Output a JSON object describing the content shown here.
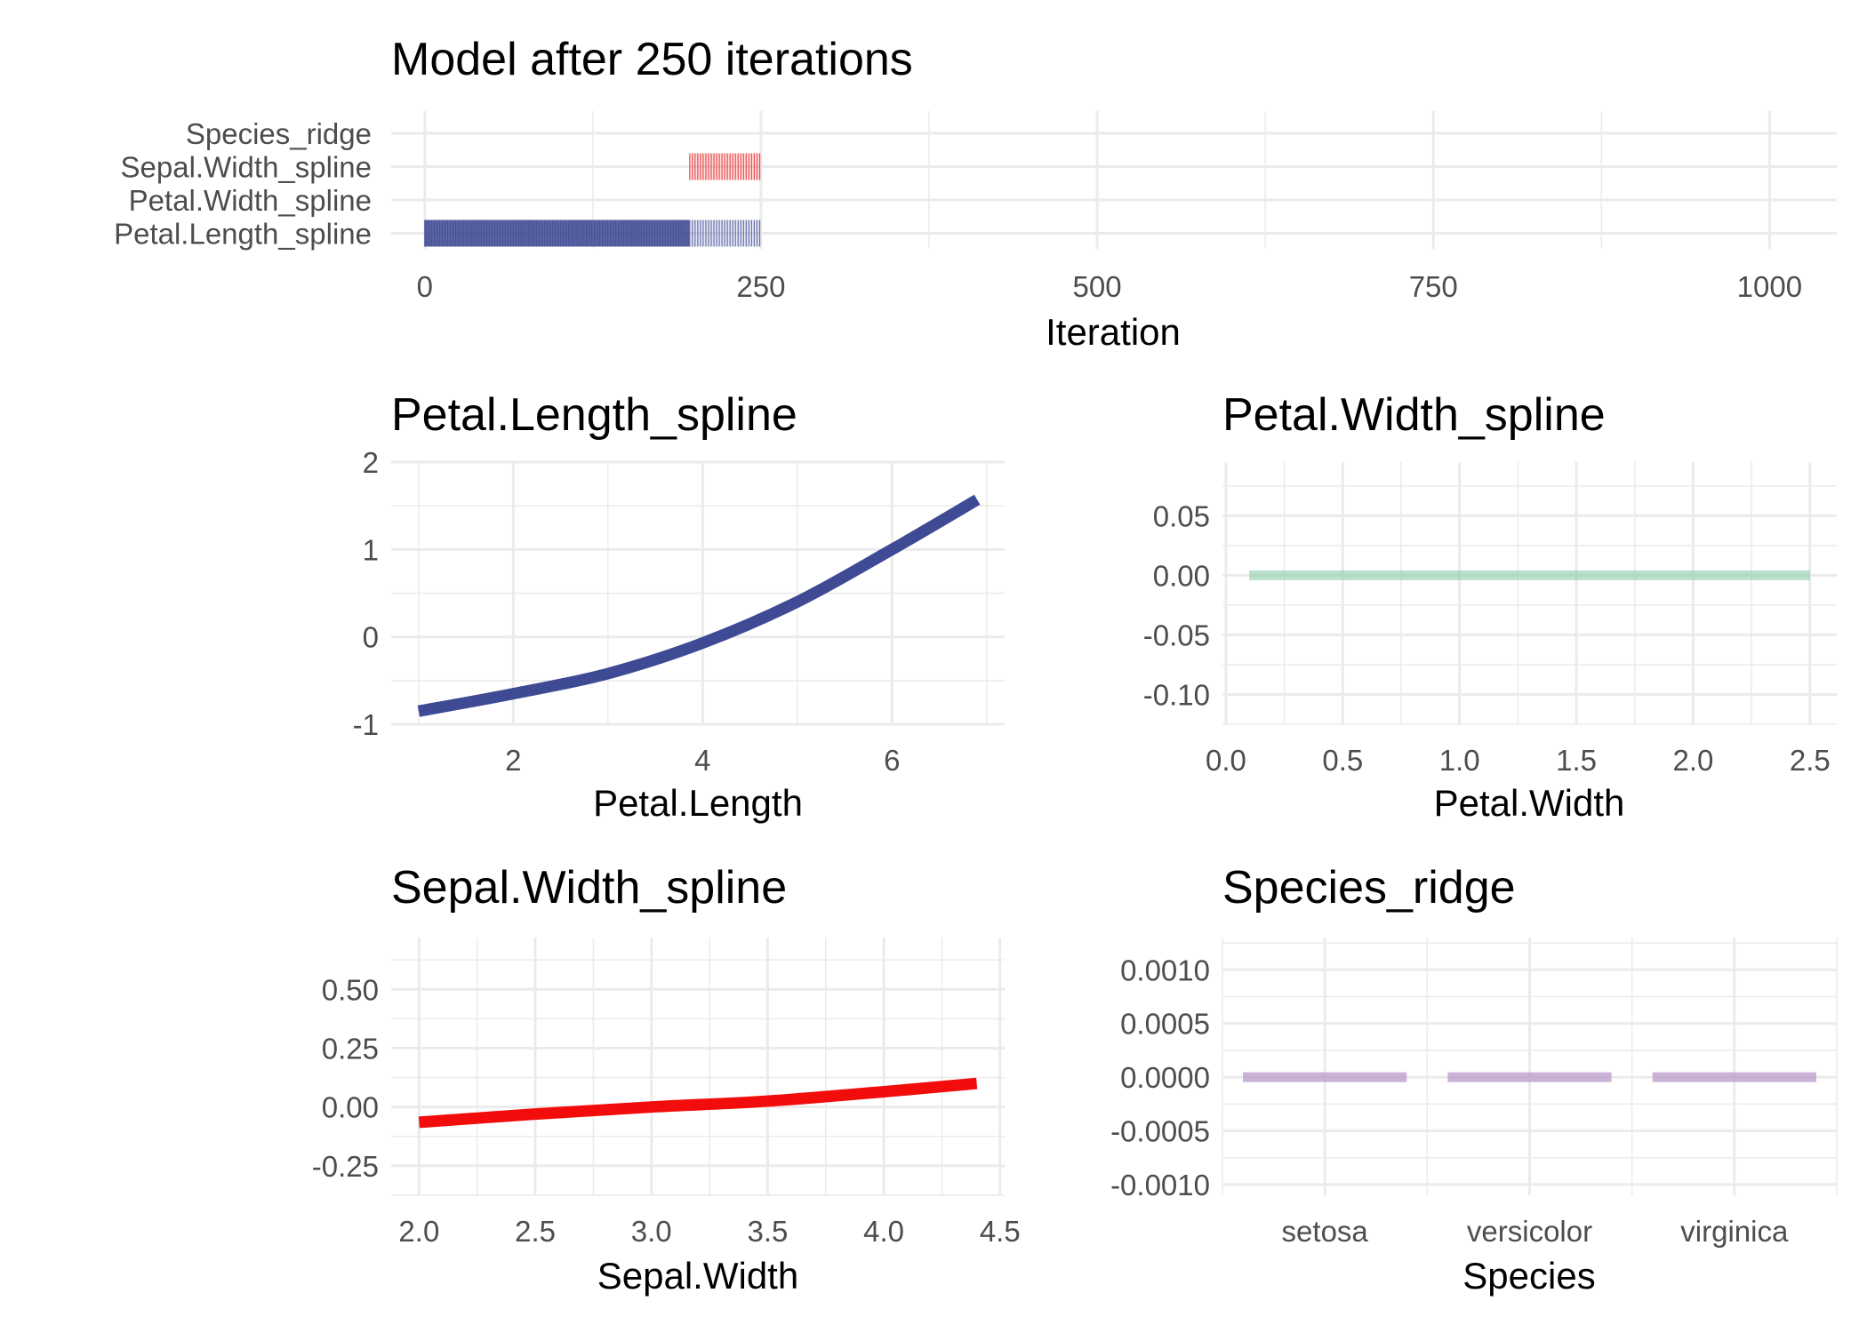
{
  "chart_data": [
    {
      "id": "trace",
      "type": "bar",
      "title": "Model after 250 iterations",
      "xlabel": "Iteration",
      "ylabel": "",
      "xlim": [
        -25,
        1050
      ],
      "x_ticks": [
        0,
        250,
        500,
        750,
        1000
      ],
      "categories": [
        "Species_ridge",
        "Sepal.Width_spline",
        "Petal.Width_spline",
        "Petal.Length_spline"
      ],
      "selected_iterations": [
        {
          "name": "Petal.Length_spline",
          "color": "#3F4A94",
          "ranges": [
            [
              0,
              197
            ],
            [
              197,
              250
            ]
          ],
          "density": [
            "dense",
            "sparse"
          ]
        },
        {
          "name": "Sepal.Width_spline",
          "color": "#E41A1C",
          "ranges": [
            [
              197,
              250
            ]
          ],
          "density": [
            "sparse"
          ]
        },
        {
          "name": "Petal.Width_spline",
          "color": "#7FC9A0",
          "ranges": []
        },
        {
          "name": "Species_ridge",
          "color": "#B89AC9",
          "ranges": []
        }
      ]
    },
    {
      "id": "petal-length",
      "type": "line",
      "title": "Petal.Length_spline",
      "xlabel": "Petal.Length",
      "ylabel": "",
      "color": "#3F4A94",
      "xlim": [
        0.71,
        7.19
      ],
      "ylim": [
        -1.0,
        2.0
      ],
      "x_ticks": [
        2,
        4,
        6
      ],
      "y_ticks": [
        -1,
        0,
        1,
        2
      ],
      "x": [
        1.0,
        2.0,
        3.0,
        4.0,
        5.0,
        6.0,
        6.9
      ],
      "y": [
        -0.85,
        -0.65,
        -0.42,
        -0.07,
        0.4,
        1.0,
        1.57
      ]
    },
    {
      "id": "petal-width",
      "type": "line",
      "title": "Petal.Width_spline",
      "xlabel": "Petal.Width",
      "ylabel": "",
      "color": "#7FC9A0",
      "xlim": [
        -0.015,
        2.615
      ],
      "ylim": [
        -0.125,
        0.095
      ],
      "x_ticks": [
        0.0,
        0.5,
        1.0,
        1.5,
        2.0,
        2.5
      ],
      "x_tick_labels": [
        "0.0",
        "0.5",
        "1.0",
        "1.5",
        "2.0",
        "2.5"
      ],
      "y_ticks": [
        0.05,
        0.0,
        -0.05,
        -0.1
      ],
      "y_tick_labels": [
        "0.05",
        "0.00",
        "-0.05",
        "-0.10"
      ],
      "x": [
        0.1,
        2.5
      ],
      "y": [
        0.0,
        0.0
      ]
    },
    {
      "id": "sepal-width",
      "type": "line",
      "title": "Sepal.Width_spline",
      "xlabel": "Sepal.Width",
      "ylabel": "",
      "color": "#F20C0C",
      "xlim": [
        1.88,
        4.52
      ],
      "ylim": [
        -0.375,
        0.72
      ],
      "x_ticks": [
        2.0,
        2.5,
        3.0,
        3.5,
        4.0,
        4.5
      ],
      "x_tick_labels": [
        "2.0",
        "2.5",
        "3.0",
        "3.5",
        "4.0",
        "4.5"
      ],
      "y_ticks": [
        0.5,
        0.25,
        0.0,
        -0.25
      ],
      "y_tick_labels": [
        "0.50",
        "0.25",
        "0.00",
        "-0.25"
      ],
      "x": [
        2.0,
        2.5,
        3.0,
        3.5,
        4.0,
        4.4
      ],
      "y": [
        -0.065,
        -0.03,
        0.0,
        0.025,
        0.065,
        0.1
      ]
    },
    {
      "id": "species",
      "type": "bar",
      "title": "Species_ridge",
      "xlabel": "Species",
      "ylabel": "",
      "color": "#B89AC9",
      "ylim": [
        -0.0011,
        0.0013
      ],
      "categories": [
        "setosa",
        "versicolor",
        "virginica"
      ],
      "values": [
        0.0,
        0.0,
        0.0
      ],
      "y_ticks": [
        0.001,
        0.0005,
        0.0,
        -0.0005,
        -0.001
      ],
      "y_tick_labels": [
        "0.0010",
        "0.0005",
        "0.0000",
        "-0.0005",
        "-0.0010"
      ]
    }
  ]
}
